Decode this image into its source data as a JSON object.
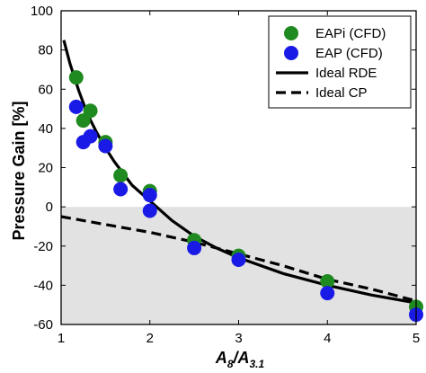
{
  "chart_data": {
    "type": "scatter",
    "title": "",
    "xlabel": {
      "main": "A",
      "sub1": "8",
      "slash": "/A",
      "sub2": "3.1"
    },
    "ylabel": "Pressure Gain [%]",
    "xlim": [
      1,
      5
    ],
    "ylim": [
      -60,
      100
    ],
    "xticks": [
      1,
      2,
      3,
      4,
      5
    ],
    "yticks": [
      -60,
      -40,
      -20,
      0,
      20,
      40,
      60,
      80,
      100
    ],
    "grid": false,
    "legend_position": "top-right",
    "shaded_region": {
      "y_from": -60,
      "y_to": 0,
      "color": "#e2e2e2"
    },
    "series": [
      {
        "name": "EAPi (CFD)",
        "kind": "scatter",
        "color": "#1f8a1f",
        "points": [
          [
            1.17,
            66
          ],
          [
            1.25,
            44
          ],
          [
            1.33,
            49
          ],
          [
            1.5,
            33
          ],
          [
            1.67,
            16
          ],
          [
            2.0,
            8
          ],
          [
            2.5,
            -17
          ],
          [
            3.0,
            -25
          ],
          [
            4.0,
            -38
          ],
          [
            5.0,
            -51
          ]
        ]
      },
      {
        "name": "EAP (CFD)",
        "kind": "scatter",
        "color": "#1a1ae6",
        "points": [
          [
            1.17,
            51
          ],
          [
            1.25,
            33
          ],
          [
            1.33,
            36
          ],
          [
            1.5,
            31
          ],
          [
            1.67,
            9
          ],
          [
            2.0,
            6
          ],
          [
            2.0,
            -2
          ],
          [
            2.5,
            -21
          ],
          [
            3.0,
            -27
          ],
          [
            4.0,
            -44
          ],
          [
            5.0,
            -55
          ]
        ]
      },
      {
        "name": "Ideal RDE",
        "kind": "line",
        "style": "solid",
        "color": "#000000",
        "points": [
          [
            1.03,
            85
          ],
          [
            1.1,
            73
          ],
          [
            1.2,
            59
          ],
          [
            1.3,
            47
          ],
          [
            1.4,
            38
          ],
          [
            1.5,
            30
          ],
          [
            1.6,
            23
          ],
          [
            1.8,
            11
          ],
          [
            2.0,
            3
          ],
          [
            2.25,
            -7
          ],
          [
            2.5,
            -15
          ],
          [
            2.75,
            -21
          ],
          [
            3.0,
            -26
          ],
          [
            3.5,
            -34
          ],
          [
            4.0,
            -40
          ],
          [
            4.5,
            -45
          ],
          [
            5.0,
            -49
          ]
        ]
      },
      {
        "name": "Ideal CP",
        "kind": "line",
        "style": "dashed",
        "color": "#000000",
        "points": [
          [
            1.0,
            -5
          ],
          [
            1.5,
            -9
          ],
          [
            2.0,
            -13
          ],
          [
            2.5,
            -18
          ],
          [
            3.0,
            -24
          ],
          [
            3.5,
            -30
          ],
          [
            4.0,
            -37
          ],
          [
            4.5,
            -42
          ],
          [
            5.0,
            -48
          ]
        ]
      }
    ]
  }
}
